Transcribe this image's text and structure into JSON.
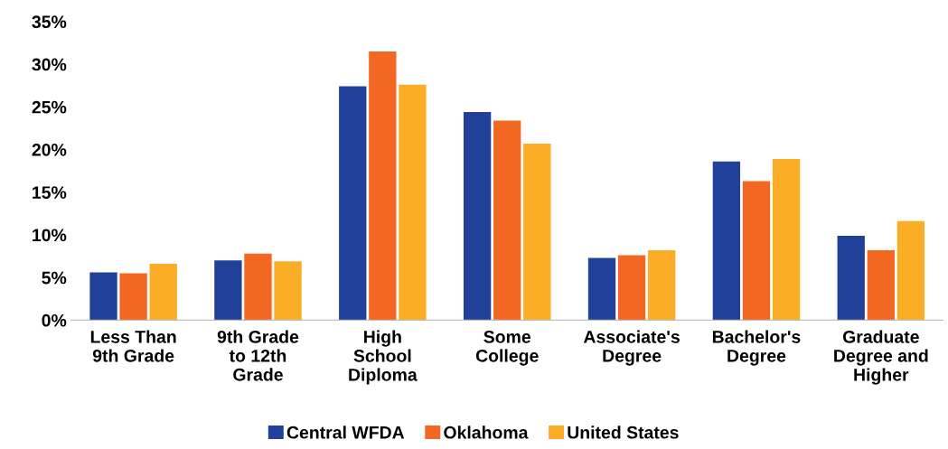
{
  "chart_data": {
    "type": "bar",
    "categories": [
      "Less Than\n9th Grade",
      "9th Grade\nto 12th\nGrade",
      "High\nSchool\nDiploma",
      "Some\nCollege",
      "Associate's\nDegree",
      "Bachelor's\nDegree",
      "Graduate\nDegree and\nHigher"
    ],
    "series": [
      {
        "name": "Central WFDA",
        "color": "#21409a",
        "values": [
          5.6,
          7.0,
          27.4,
          24.4,
          7.3,
          18.6,
          9.9
        ]
      },
      {
        "name": "Oklahoma",
        "color": "#f26722",
        "values": [
          5.5,
          7.8,
          31.5,
          23.4,
          7.6,
          16.3,
          8.2
        ]
      },
      {
        "name": "United States",
        "color": "#fbad26",
        "values": [
          6.6,
          6.9,
          27.6,
          20.7,
          8.2,
          18.9,
          11.6
        ]
      }
    ],
    "ylim": [
      0,
      35
    ],
    "yticks": [
      {
        "value": 0,
        "label": "0%"
      },
      {
        "value": 5,
        "label": "5%"
      },
      {
        "value": 10,
        "label": "10%"
      },
      {
        "value": 15,
        "label": "15%"
      },
      {
        "value": 20,
        "label": "20%"
      },
      {
        "value": 25,
        "label": "25%"
      },
      {
        "value": 30,
        "label": "30%"
      },
      {
        "value": 35,
        "label": "35%"
      }
    ],
    "grid": false,
    "legend": "bottom"
  }
}
